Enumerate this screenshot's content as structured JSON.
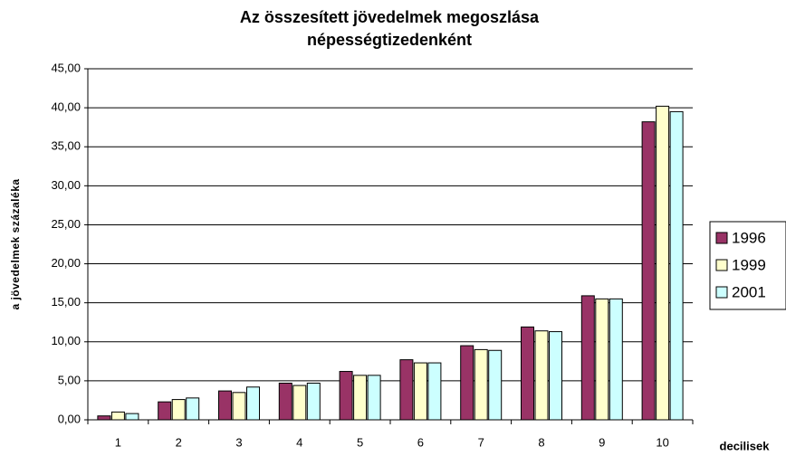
{
  "chart_data": {
    "type": "bar",
    "title": [
      "Az összesített jövedelmek megoszlása",
      "népességtizedenként"
    ],
    "y_label": "a jövedelmek százaléka",
    "x_label": "decilisek",
    "categories": [
      "1",
      "2",
      "3",
      "4",
      "5",
      "6",
      "7",
      "8",
      "9",
      "10"
    ],
    "series": [
      {
        "name": "1996",
        "color": "#993366",
        "values": [
          0.5,
          2.3,
          3.7,
          4.7,
          6.2,
          7.7,
          9.5,
          11.9,
          15.9,
          38.2
        ]
      },
      {
        "name": "1999",
        "color": "#ffffcc",
        "values": [
          1.0,
          2.6,
          3.5,
          4.4,
          5.7,
          7.3,
          9.0,
          11.4,
          15.5,
          40.2
        ]
      },
      {
        "name": "2001",
        "color": "#ccffff",
        "values": [
          0.8,
          2.8,
          4.2,
          4.7,
          5.7,
          7.3,
          8.9,
          11.3,
          15.5,
          39.5
        ]
      }
    ],
    "ylim": [
      0,
      45
    ],
    "yticks": [
      {
        "value": 0,
        "label": "0,00"
      },
      {
        "value": 5,
        "label": "5,00"
      },
      {
        "value": 10,
        "label": "10,00"
      },
      {
        "value": 15,
        "label": "15,00"
      },
      {
        "value": 20,
        "label": "20,00"
      },
      {
        "value": 25,
        "label": "25,00"
      },
      {
        "value": 30,
        "label": "30,00"
      },
      {
        "value": 35,
        "label": "35,00"
      },
      {
        "value": 40,
        "label": "40,00"
      },
      {
        "value": 45,
        "label": "45,00"
      }
    ],
    "grid": true
  }
}
